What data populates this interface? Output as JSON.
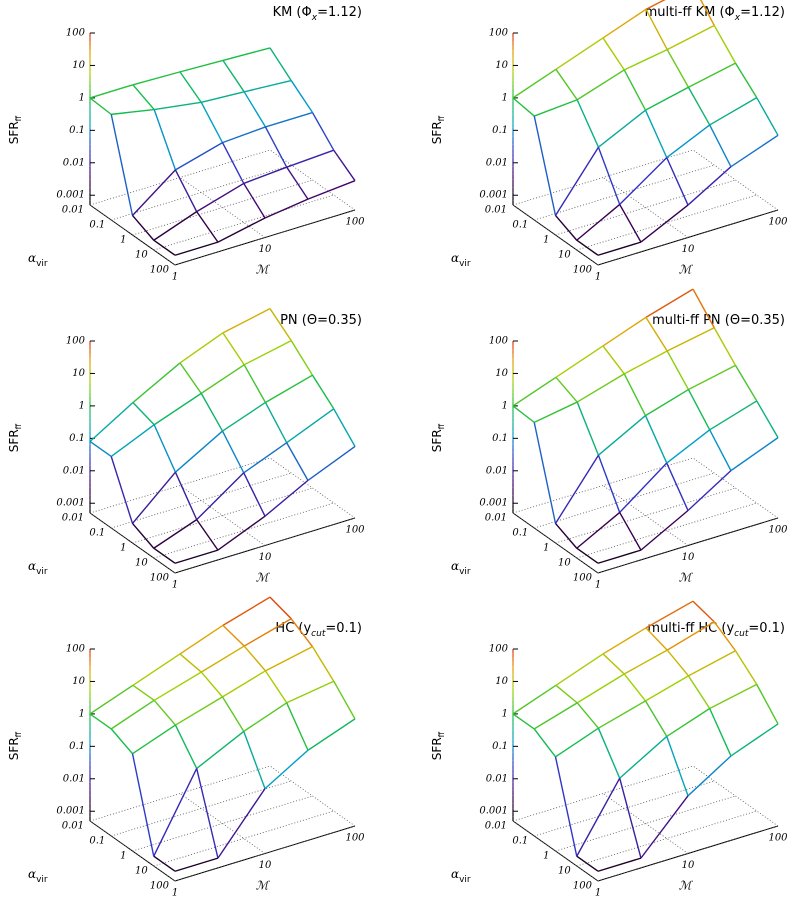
{
  "chart_data": [
    {
      "type": "surface",
      "title_parts": [
        {
          "text": "KM (Φ"
        },
        {
          "text": "x",
          "sub": true
        },
        {
          "text": "=1.12)"
        }
      ],
      "zlabel": "SFR",
      "zlabel_sub": "ff",
      "alpha_label": "α",
      "alpha_label_sub": "vir",
      "mach_label": "ℳ",
      "alpha": [
        0.01,
        0.1,
        1,
        10,
        100
      ],
      "mach": [
        1,
        3,
        10,
        30,
        100
      ],
      "z": [
        [
          1,
          1,
          0.9,
          0.8,
          0.7
        ],
        [
          0.9,
          0.5,
          0.3,
          0.25,
          0.2
        ],
        [
          0.002,
          0.02,
          0.05,
          0.06,
          0.06
        ],
        [
          0.001,
          0.003,
          0.008,
          0.01,
          0.012
        ],
        [
          0.001,
          0.001,
          0.002,
          0.003,
          0.004
        ]
      ],
      "zlim": [
        0.0005,
        100
      ],
      "zticks": [
        0.001,
        0.01,
        0.1,
        1,
        10,
        100
      ],
      "alim": [
        0.01,
        100
      ],
      "aticks": [
        0.01,
        0.1,
        1,
        10,
        100
      ],
      "mlim": [
        1,
        100
      ],
      "mticks": [
        1,
        10,
        100
      ],
      "log": true
    },
    {
      "type": "surface",
      "title_parts": [
        {
          "text": "multi-ff KM (Φ"
        },
        {
          "text": "x",
          "sub": true
        },
        {
          "text": "=1.12)"
        }
      ],
      "zlabel": "SFR",
      "zlabel_sub": "ff",
      "alpha_label": "α",
      "alpha_label_sub": "vir",
      "mach_label": "ℳ",
      "alpha": [
        0.01,
        0.1,
        1,
        10,
        100
      ],
      "mach": [
        1,
        3,
        10,
        30,
        100
      ],
      "z": [
        [
          1,
          3,
          10,
          30,
          60
        ],
        [
          0.8,
          1,
          3,
          5,
          10
        ],
        [
          0.002,
          0.1,
          0.5,
          1,
          2
        ],
        [
          0.001,
          0.005,
          0.05,
          0.2,
          0.5
        ],
        [
          0.001,
          0.001,
          0.005,
          0.03,
          0.1
        ]
      ],
      "zlim": [
        0.0005,
        100
      ],
      "zticks": [
        0.001,
        0.01,
        0.1,
        1,
        10,
        100
      ],
      "alim": [
        0.01,
        100
      ],
      "aticks": [
        0.01,
        0.1,
        1,
        10,
        100
      ],
      "mlim": [
        1,
        100
      ],
      "mticks": [
        1,
        10,
        100
      ],
      "log": true
    },
    {
      "type": "surface",
      "title_parts": [
        {
          "text": "PN (Θ=0.35)"
        }
      ],
      "zlabel": "SFR",
      "zlabel_sub": "ff",
      "alpha_label": "α",
      "alpha_label_sub": "vir",
      "mach_label": "ℳ",
      "alpha": [
        0.01,
        0.1,
        1,
        10,
        100
      ],
      "mach": [
        1,
        3,
        10,
        30,
        100
      ],
      "z": [
        [
          0.08,
          0.5,
          3,
          10,
          20
        ],
        [
          0.08,
          0.3,
          1,
          3,
          6
        ],
        [
          0.002,
          0.03,
          0.2,
          0.6,
          1.5
        ],
        [
          0.001,
          0.003,
          0.03,
          0.1,
          0.4
        ],
        [
          0.001,
          0.001,
          0.004,
          0.02,
          0.08
        ]
      ],
      "zlim": [
        0.0005,
        100
      ],
      "zticks": [
        0.001,
        0.01,
        0.1,
        1,
        10,
        100
      ],
      "alim": [
        0.01,
        100
      ],
      "aticks": [
        0.01,
        0.1,
        1,
        10,
        100
      ],
      "mlim": [
        1,
        100
      ],
      "mticks": [
        1,
        10,
        100
      ],
      "log": true
    },
    {
      "type": "surface",
      "title_parts": [
        {
          "text": "multi-ff PN (Θ=0.35)"
        }
      ],
      "zlabel": "SFR",
      "zlabel_sub": "ff",
      "alpha_label": "α",
      "alpha_label_sub": "vir",
      "mach_label": "ℳ",
      "alpha": [
        0.01,
        0.1,
        1,
        10,
        100
      ],
      "mach": [
        1,
        3,
        10,
        30,
        100
      ],
      "z": [
        [
          1,
          3,
          10,
          30,
          80
        ],
        [
          0.9,
          1.5,
          4,
          8,
          15
        ],
        [
          0.002,
          0.1,
          0.6,
          1.5,
          3
        ],
        [
          0.001,
          0.005,
          0.06,
          0.25,
          0.7
        ],
        [
          0.001,
          0.001,
          0.006,
          0.04,
          0.15
        ]
      ],
      "zlim": [
        0.0005,
        100
      ],
      "zticks": [
        0.001,
        0.01,
        0.1,
        1,
        10,
        100
      ],
      "alim": [
        0.01,
        100
      ],
      "aticks": [
        0.01,
        0.1,
        1,
        10,
        100
      ],
      "mlim": [
        1,
        100
      ],
      "mticks": [
        1,
        10,
        100
      ],
      "log": true
    },
    {
      "type": "surface",
      "title_parts": [
        {
          "text": "HC (y"
        },
        {
          "text": "cut",
          "sub": true
        },
        {
          "text": "=0.1)"
        }
      ],
      "zlabel": "SFR",
      "zlabel_sub": "ff",
      "alpha_label": "α",
      "alpha_label_sub": "vir",
      "mach_label": "ℳ",
      "alpha": [
        0.01,
        0.1,
        1,
        10,
        100
      ],
      "mach": [
        1,
        3,
        10,
        30,
        100
      ],
      "z": [
        [
          1,
          3,
          10,
          30,
          80
        ],
        [
          1,
          3,
          8,
          20,
          50
        ],
        [
          0.5,
          1.5,
          4,
          10,
          20
        ],
        [
          0.001,
          0.2,
          1,
          3,
          5
        ],
        [
          0.001,
          0.001,
          0.05,
          0.3,
          1
        ]
      ],
      "zlim": [
        0.0005,
        100
      ],
      "zticks": [
        0.001,
        0.01,
        0.1,
        1,
        10,
        100
      ],
      "alim": [
        0.01,
        100
      ],
      "aticks": [
        0.01,
        0.1,
        1,
        10,
        100
      ],
      "mlim": [
        1,
        100
      ],
      "mticks": [
        1,
        10,
        100
      ],
      "log": true
    },
    {
      "type": "surface",
      "title_parts": [
        {
          "text": "multi-ff HC (y"
        },
        {
          "text": "cut",
          "sub": true
        },
        {
          "text": "=0.1)"
        }
      ],
      "zlabel": "SFR",
      "zlabel_sub": "ff",
      "alpha_label": "α",
      "alpha_label_sub": "vir",
      "mach_label": "ℳ",
      "alpha": [
        0.01,
        0.1,
        1,
        10,
        100
      ],
      "mach": [
        1,
        3,
        10,
        30,
        100
      ],
      "z": [
        [
          1,
          3,
          10,
          25,
          60
        ],
        [
          1,
          2.5,
          7,
          15,
          40
        ],
        [
          0.4,
          1.2,
          3,
          7,
          15
        ],
        [
          0.001,
          0.1,
          0.7,
          2,
          4
        ],
        [
          0.001,
          0.001,
          0.03,
          0.2,
          0.7
        ]
      ],
      "zlim": [
        0.0005,
        100
      ],
      "zticks": [
        0.001,
        0.01,
        0.1,
        1,
        10,
        100
      ],
      "alim": [
        0.01,
        100
      ],
      "aticks": [
        0.01,
        0.1,
        1,
        10,
        100
      ],
      "mlim": [
        1,
        100
      ],
      "mticks": [
        1,
        10,
        100
      ],
      "log": true
    }
  ]
}
